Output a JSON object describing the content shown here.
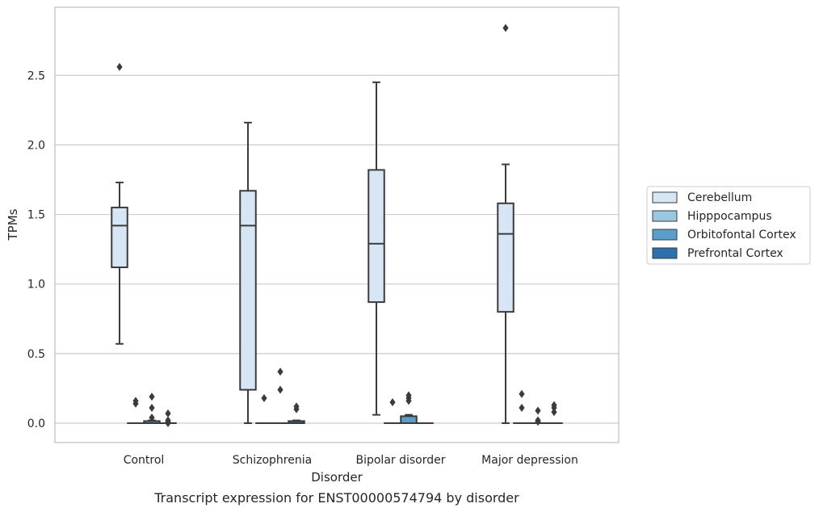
{
  "chart_data": {
    "type": "box",
    "caption": "Transcript expression for ENST00000574794 by disorder",
    "xlabel": "Disorder",
    "ylabel": "TPMs",
    "ylim": [
      -0.14,
      2.98
    ],
    "yticks": [
      "0.0",
      "0.5",
      "1.0",
      "1.5",
      "2.0",
      "2.5"
    ],
    "ytick_values": [
      0.0,
      0.5,
      1.0,
      1.5,
      2.0,
      2.5
    ],
    "grid": "horizontal",
    "legend_position": "right",
    "categories": [
      "Control",
      "Schizophrenia",
      "Bipolar disorder",
      "Major depression"
    ],
    "series": [
      {
        "name": "Cerebellum",
        "color": "#d6e6f4",
        "boxes": [
          {
            "q1": 1.12,
            "median": 1.42,
            "q3": 1.55,
            "whislo": 0.57,
            "whishi": 1.73,
            "fliers": [
              2.56
            ]
          },
          {
            "q1": 0.24,
            "median": 1.42,
            "q3": 1.67,
            "whislo": 0.0,
            "whishi": 2.16,
            "fliers": []
          },
          {
            "q1": 0.87,
            "median": 1.29,
            "q3": 1.82,
            "whislo": 0.06,
            "whishi": 2.45,
            "fliers": []
          },
          {
            "q1": 0.8,
            "median": 1.36,
            "q3": 1.58,
            "whislo": 0.0,
            "whishi": 1.86,
            "fliers": [
              2.84
            ]
          }
        ]
      },
      {
        "name": "Hipppocampus",
        "color": "#9ac8e0",
        "boxes": [
          {
            "q1": 0.0,
            "median": 0.0,
            "q3": 0.0,
            "whislo": 0.0,
            "whishi": 0.0,
            "fliers": [
              0.14,
              0.16
            ]
          },
          {
            "q1": 0.0,
            "median": 0.0,
            "q3": 0.0,
            "whislo": 0.0,
            "whishi": 0.0,
            "fliers": [
              0.18
            ]
          },
          {
            "q1": 0.0,
            "median": 0.0,
            "q3": 0.0,
            "whislo": 0.0,
            "whishi": 0.0,
            "fliers": [
              0.15
            ]
          },
          {
            "q1": 0.0,
            "median": 0.0,
            "q3": 0.0,
            "whislo": 0.0,
            "whishi": 0.0,
            "fliers": [
              0.11,
              0.21
            ]
          }
        ]
      },
      {
        "name": "Orbitofontal Cortex",
        "color": "#5a9ec9",
        "boxes": [
          {
            "q1": 0.0,
            "median": 0.0,
            "q3": 0.015,
            "whislo": 0.0,
            "whishi": 0.02,
            "fliers": [
              0.04,
              0.11,
              0.19
            ]
          },
          {
            "q1": 0.0,
            "median": 0.0,
            "q3": 0.0,
            "whislo": 0.0,
            "whishi": 0.0,
            "fliers": [
              0.24,
              0.37
            ]
          },
          {
            "q1": 0.0,
            "median": 0.0,
            "q3": 0.05,
            "whislo": 0.0,
            "whishi": 0.06,
            "fliers": [
              0.16,
              0.18,
              0.2
            ]
          },
          {
            "q1": 0.0,
            "median": 0.0,
            "q3": 0.0,
            "whislo": 0.0,
            "whishi": 0.0,
            "fliers": [
              0.01,
              0.02,
              0.09
            ]
          }
        ]
      },
      {
        "name": "Prefrontal Cortex",
        "color": "#2e6fad",
        "boxes": [
          {
            "q1": 0.0,
            "median": 0.0,
            "q3": 0.0,
            "whislo": 0.0,
            "whishi": 0.0,
            "fliers": [
              0.0,
              0.01,
              0.02,
              0.07
            ]
          },
          {
            "q1": 0.0,
            "median": 0.0,
            "q3": 0.015,
            "whislo": 0.0,
            "whishi": 0.02,
            "fliers": [
              0.1,
              0.12
            ]
          },
          {
            "q1": 0.0,
            "median": 0.0,
            "q3": 0.0,
            "whislo": 0.0,
            "whishi": 0.0,
            "fliers": []
          },
          {
            "q1": 0.0,
            "median": 0.0,
            "q3": 0.0,
            "whislo": 0.0,
            "whishi": 0.0,
            "fliers": [
              0.08,
              0.11,
              0.13
            ]
          }
        ]
      }
    ]
  }
}
